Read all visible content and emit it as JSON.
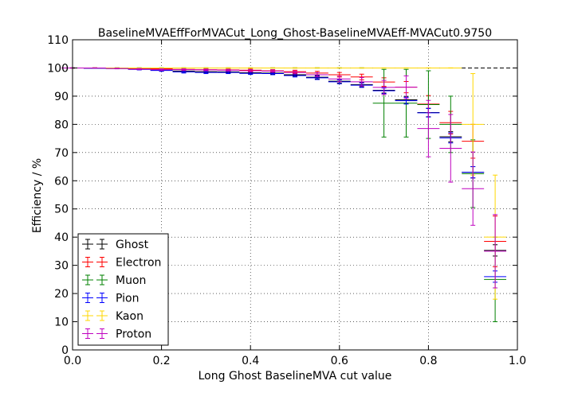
{
  "chart_data": {
    "type": "scatter",
    "title": "BaselineMVAEffForMVACut_Long_Ghost-BaselineMVAEff-MVACut0.9750",
    "xlabel": "Long Ghost BaselineMVA cut value",
    "ylabel": "Efficiency / %",
    "xlim": [
      0.0,
      1.0
    ],
    "ylim": [
      0,
      110
    ],
    "xticks": [
      0.0,
      0.2,
      0.4,
      0.6,
      0.8,
      1.0
    ],
    "xtick_labels": [
      "0.0",
      "0.2",
      "0.4",
      "0.6",
      "0.8",
      "1.0"
    ],
    "yticks": [
      0,
      10,
      20,
      30,
      40,
      50,
      60,
      70,
      80,
      90,
      100,
      110
    ],
    "ytick_labels": [
      "0",
      "10",
      "20",
      "30",
      "40",
      "50",
      "60",
      "70",
      "80",
      "90",
      "100",
      "110"
    ],
    "grid": true,
    "legend_position": "lower-left",
    "reference_line": {
      "y": 100,
      "style": "dashed"
    },
    "x_bin_half_width": 0.025,
    "series": [
      {
        "name": "Ghost",
        "color": "#000000",
        "x": [
          0.0,
          0.05,
          0.1,
          0.15,
          0.2,
          0.25,
          0.3,
          0.35,
          0.4,
          0.45,
          0.5,
          0.55,
          0.6,
          0.65,
          0.7,
          0.75,
          0.8,
          0.85,
          0.9,
          0.95
        ],
        "y": [
          100,
          99.9,
          99.8,
          99.6,
          99.3,
          98.9,
          98.7,
          98.6,
          98.3,
          98.2,
          97.6,
          96.7,
          95.3,
          94.1,
          92.1,
          88.7,
          84.2,
          75.6,
          63.0,
          35.3
        ],
        "yerr": [
          0.05,
          0.05,
          0.1,
          0.2,
          0.3,
          0.4,
          0.4,
          0.4,
          0.4,
          0.4,
          0.5,
          0.6,
          0.7,
          0.8,
          1.0,
          1.2,
          1.5,
          1.8,
          2.0,
          2.0
        ]
      },
      {
        "name": "Electron",
        "color": "#ff0000",
        "x": [
          0.0,
          0.05,
          0.1,
          0.15,
          0.2,
          0.25,
          0.3,
          0.35,
          0.4,
          0.45,
          0.5,
          0.55,
          0.6,
          0.65,
          0.7,
          0.75,
          0.8,
          0.85,
          0.9,
          0.95
        ],
        "y": [
          100,
          100,
          99.9,
          99.8,
          99.7,
          99.5,
          99.4,
          99.3,
          99.2,
          99.0,
          98.7,
          98.2,
          97.6,
          96.8,
          95.0,
          93.2,
          87.2,
          80.6,
          74.0,
          38.5
        ],
        "yerr": [
          0.05,
          0.05,
          0.1,
          0.1,
          0.2,
          0.3,
          0.3,
          0.3,
          0.4,
          0.4,
          0.5,
          0.6,
          0.8,
          1.0,
          1.5,
          2.0,
          3.0,
          4.0,
          6.0,
          9.0
        ]
      },
      {
        "name": "Muon",
        "color": "#008000",
        "x": [
          0.0,
          0.05,
          0.1,
          0.15,
          0.2,
          0.25,
          0.3,
          0.35,
          0.4,
          0.45,
          0.5,
          0.55,
          0.6,
          0.65,
          0.7,
          0.75,
          0.8,
          0.85,
          0.9,
          0.95
        ],
        "y": [
          100,
          100,
          100,
          100,
          100,
          100,
          100,
          100,
          100,
          100,
          100,
          100,
          100,
          100,
          87.5,
          87.5,
          87.0,
          80.0,
          62.5,
          25.0
        ],
        "yerr": [
          0.05,
          0.05,
          0.05,
          0.05,
          0.05,
          0.05,
          0.05,
          0.05,
          0.05,
          0.05,
          0.05,
          0.05,
          0.05,
          0.05,
          12.0,
          12.0,
          12.0,
          10.0,
          12.0,
          15.0
        ]
      },
      {
        "name": "Pion",
        "color": "#0000ff",
        "x": [
          0.0,
          0.05,
          0.1,
          0.15,
          0.2,
          0.25,
          0.3,
          0.35,
          0.4,
          0.45,
          0.5,
          0.55,
          0.6,
          0.65,
          0.7,
          0.75,
          0.8,
          0.85,
          0.9,
          0.95
        ],
        "y": [
          100,
          99.9,
          99.8,
          99.5,
          99.1,
          98.6,
          98.4,
          98.4,
          98.1,
          98.0,
          97.3,
          96.5,
          95.1,
          93.9,
          91.9,
          88.4,
          84.1,
          75.2,
          63.0,
          26.0
        ],
        "yerr": [
          0.05,
          0.05,
          0.1,
          0.2,
          0.3,
          0.4,
          0.4,
          0.4,
          0.4,
          0.4,
          0.5,
          0.6,
          0.7,
          0.8,
          1.0,
          1.2,
          1.5,
          1.8,
          2.0,
          2.0
        ]
      },
      {
        "name": "Kaon",
        "color": "#ffd700",
        "x": [
          0.0,
          0.05,
          0.1,
          0.15,
          0.2,
          0.25,
          0.3,
          0.35,
          0.4,
          0.45,
          0.5,
          0.55,
          0.6,
          0.65,
          0.7,
          0.75,
          0.8,
          0.85,
          0.9,
          0.95
        ],
        "y": [
          100,
          100,
          100,
          100,
          100,
          100,
          100,
          100,
          100,
          100,
          100,
          100,
          100,
          100,
          100,
          100,
          100,
          100,
          80.0,
          40.0
        ],
        "yerr": [
          0.05,
          0.05,
          0.05,
          0.05,
          0.05,
          0.05,
          0.05,
          0.05,
          0.05,
          0.05,
          0.05,
          0.05,
          0.05,
          0.05,
          0.05,
          0.05,
          0.05,
          0.05,
          18.0,
          22.0
        ]
      },
      {
        "name": "Proton",
        "color": "#bf00bf",
        "x": [
          0.0,
          0.05,
          0.1,
          0.15,
          0.2,
          0.25,
          0.3,
          0.35,
          0.4,
          0.45,
          0.5,
          0.55,
          0.6,
          0.65,
          0.7,
          0.75,
          0.8,
          0.85,
          0.9,
          0.95
        ],
        "y": [
          100,
          100,
          99.8,
          99.6,
          99.4,
          99.4,
          99.3,
          99.2,
          99.0,
          98.9,
          98.4,
          97.6,
          96.1,
          95.1,
          93.1,
          93.2,
          78.5,
          71.5,
          57.2,
          35.0
        ],
        "yerr": [
          0.05,
          0.05,
          0.1,
          0.2,
          0.3,
          0.3,
          0.3,
          0.3,
          0.4,
          0.4,
          0.5,
          0.7,
          1.0,
          1.5,
          2.5,
          4.0,
          10.0,
          12.0,
          13.0,
          13.0
        ]
      }
    ]
  }
}
